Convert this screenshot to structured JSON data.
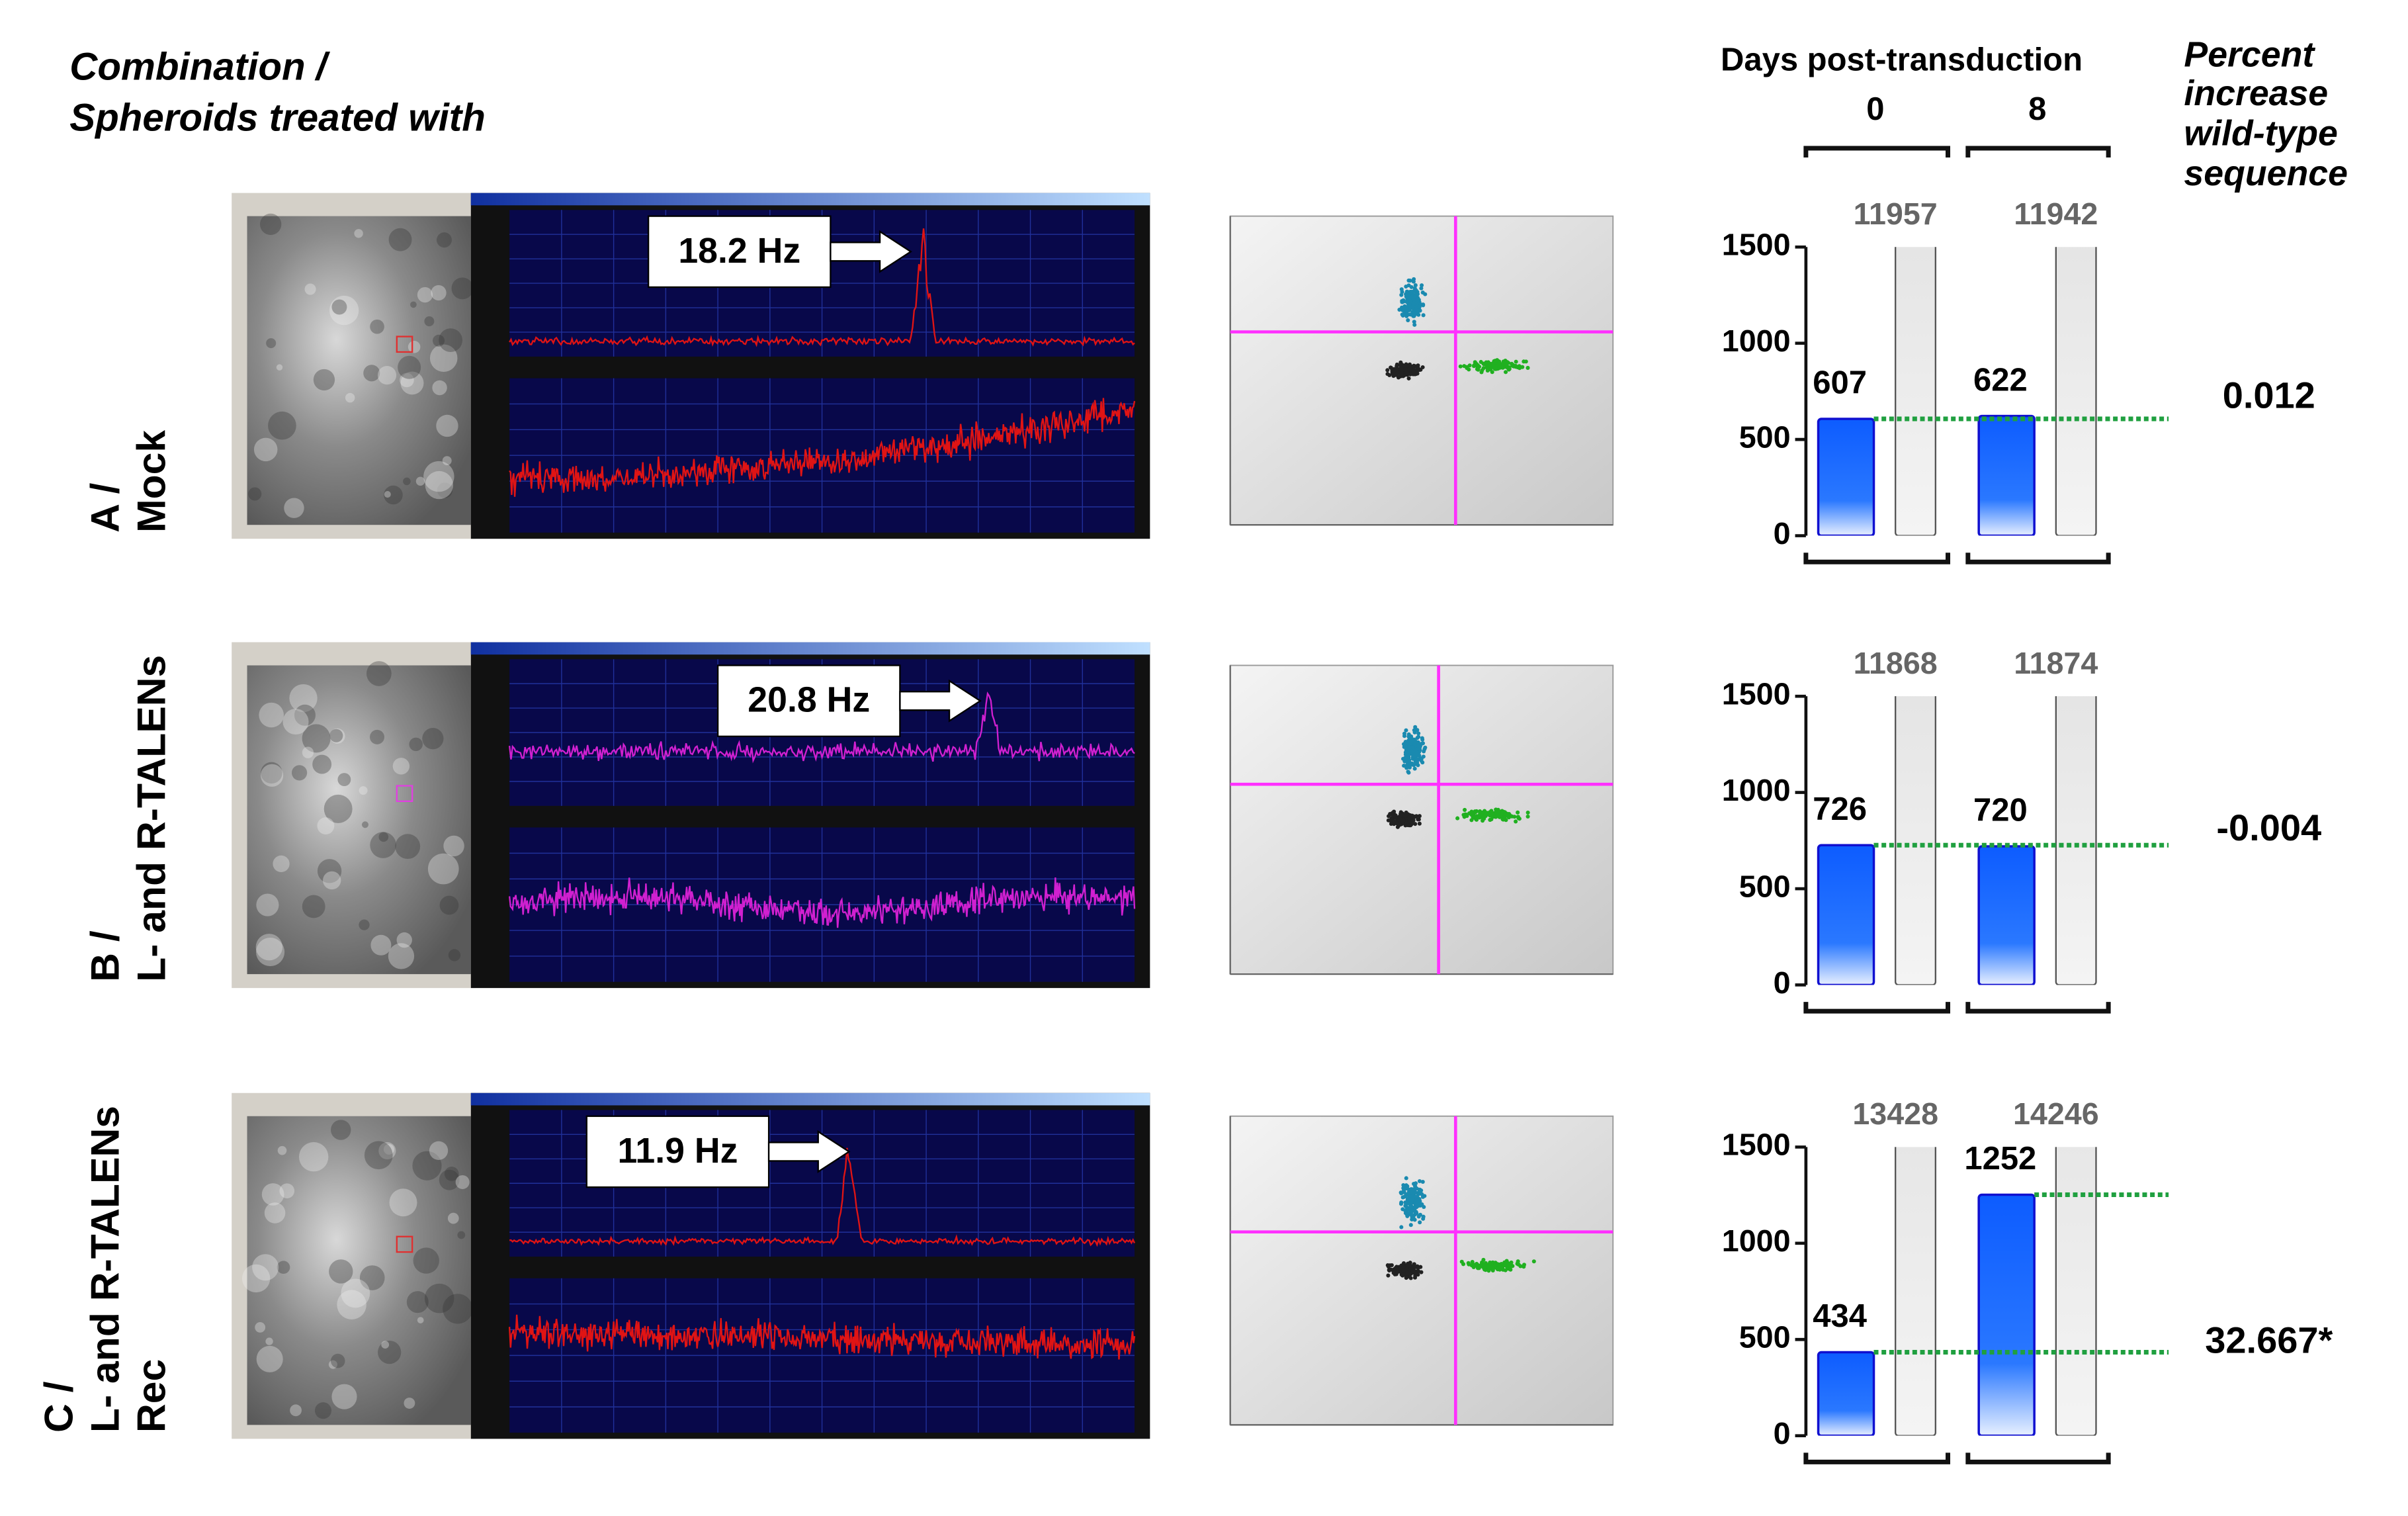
{
  "header": {
    "title_lines": [
      "Combination /",
      "Spheroids treated with"
    ],
    "days_title": "Days post-transduction",
    "days": [
      "0",
      "8"
    ],
    "percent_title_lines": [
      "Percent",
      "increase",
      "wild-type",
      "sequence"
    ]
  },
  "bar_axis": {
    "ylim": [
      0,
      1500
    ],
    "yticks": [
      0,
      500,
      1000,
      1500
    ]
  },
  "rows": [
    {
      "label_lines": [
        "A /",
        "Mock"
      ],
      "frequency": "18.2 Hz",
      "trace_color": "#e01414",
      "bars": [
        {
          "blue": 607,
          "gray": 11957
        },
        {
          "blue": 622,
          "gray": 11942
        }
      ],
      "percent": "0.012"
    },
    {
      "label_lines": [
        "B /",
        "L- and R-TALENs"
      ],
      "frequency": "20.8 Hz",
      "trace_color": "#d020d0",
      "bars": [
        {
          "blue": 726,
          "gray": 11868
        },
        {
          "blue": 720,
          "gray": 11874
        }
      ],
      "percent": "-0.004"
    },
    {
      "label_lines": [
        "C /",
        "L- and R-TALENs",
        "Rec"
      ],
      "frequency": "11.9 Hz",
      "trace_color": "#e01414",
      "bars": [
        {
          "blue": 434,
          "gray": 13428
        },
        {
          "blue": 1252,
          "gray": 14246
        }
      ],
      "percent": "32.667*"
    }
  ]
}
